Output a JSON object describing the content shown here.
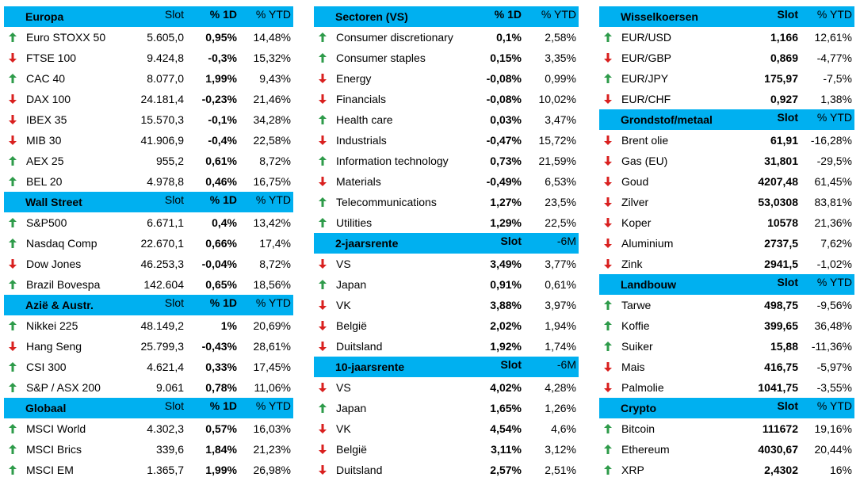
{
  "columns": [
    {
      "sections": [
        {
          "title": "Europa",
          "headers": [
            "Slot",
            "% 1D",
            "% YTD"
          ],
          "rows": [
            {
              "trend": "up",
              "name": "Euro STOXX 50",
              "cells": [
                "5.605,0",
                "0,95%",
                "14,48%"
              ]
            },
            {
              "trend": "down",
              "name": "FTSE 100",
              "cells": [
                "9.424,8",
                "-0,3%",
                "15,32%"
              ]
            },
            {
              "trend": "up",
              "name": "CAC 40",
              "cells": [
                "8.077,0",
                "1,99%",
                "9,43%"
              ]
            },
            {
              "trend": "down",
              "name": "DAX 100",
              "cells": [
                "24.181,4",
                "-0,23%",
                "21,46%"
              ]
            },
            {
              "trend": "down",
              "name": "IBEX 35",
              "cells": [
                "15.570,3",
                "-0,1%",
                "34,28%"
              ]
            },
            {
              "trend": "down",
              "name": "MIB 30",
              "cells": [
                "41.906,9",
                "-0,4%",
                "22,58%"
              ]
            },
            {
              "trend": "up",
              "name": "AEX 25",
              "cells": [
                "955,2",
                "0,61%",
                "8,72%"
              ]
            },
            {
              "trend": "up",
              "name": "BEL 20",
              "cells": [
                "4.978,8",
                "0,46%",
                "16,75%"
              ]
            }
          ]
        },
        {
          "title": "Wall Street",
          "headers": [
            "Slot",
            "% 1D",
            "% YTD"
          ],
          "rows": [
            {
              "trend": "up",
              "name": "S&P500",
              "cells": [
                "6.671,1",
                "0,4%",
                "13,42%"
              ]
            },
            {
              "trend": "up",
              "name": "Nasdaq Comp",
              "cells": [
                "22.670,1",
                "0,66%",
                "17,4%"
              ]
            },
            {
              "trend": "down",
              "name": "Dow Jones",
              "cells": [
                "46.253,3",
                "-0,04%",
                "8,72%"
              ]
            },
            {
              "trend": "up",
              "name": "Brazil Bovespa",
              "cells": [
                "142.604",
                "0,65%",
                "18,56%"
              ]
            }
          ]
        },
        {
          "title": "Azië & Austr.",
          "headers": [
            "Slot",
            "% 1D",
            "% YTD"
          ],
          "rows": [
            {
              "trend": "up",
              "name": "Nikkei 225",
              "cells": [
                "48.149,2",
                "1%",
                "20,69%"
              ]
            },
            {
              "trend": "down",
              "name": "Hang Seng",
              "cells": [
                "25.799,3",
                "-0,43%",
                "28,61%"
              ]
            },
            {
              "trend": "up",
              "name": "CSI 300",
              "cells": [
                "4.621,4",
                "0,33%",
                "17,45%"
              ]
            },
            {
              "trend": "up",
              "name": "S&P / ASX 200",
              "cells": [
                "9.061",
                "0,78%",
                "11,06%"
              ]
            }
          ]
        },
        {
          "title": "Globaal",
          "headers": [
            "Slot",
            "% 1D",
            "% YTD"
          ],
          "rows": [
            {
              "trend": "up",
              "name": "MSCI World",
              "cells": [
                "4.302,3",
                "0,57%",
                "16,03%"
              ]
            },
            {
              "trend": "up",
              "name": "MSCI Brics",
              "cells": [
                "339,6",
                "1,84%",
                "21,23%"
              ]
            },
            {
              "trend": "up",
              "name": "MSCI EM",
              "cells": [
                "1.365,7",
                "1,99%",
                "26,98%"
              ]
            }
          ]
        }
      ]
    },
    {
      "sections": [
        {
          "title": "Sectoren (VS)",
          "headers": [
            "% 1D",
            "% YTD"
          ],
          "rows": [
            {
              "trend": "up",
              "name": "Consumer discretionary",
              "cells": [
                "0,1%",
                "2,58%"
              ]
            },
            {
              "trend": "up",
              "name": "Consumer staples",
              "cells": [
                "0,15%",
                "3,35%"
              ]
            },
            {
              "trend": "down",
              "name": "Energy",
              "cells": [
                "-0,08%",
                "0,99%"
              ]
            },
            {
              "trend": "down",
              "name": "Financials",
              "cells": [
                "-0,08%",
                "10,02%"
              ]
            },
            {
              "trend": "up",
              "name": "Health care",
              "cells": [
                "0,03%",
                "3,47%"
              ]
            },
            {
              "trend": "down",
              "name": "Industrials",
              "cells": [
                "-0,47%",
                "15,72%"
              ]
            },
            {
              "trend": "up",
              "name": "Information technology",
              "cells": [
                "0,73%",
                "21,59%"
              ]
            },
            {
              "trend": "down",
              "name": "Materials",
              "cells": [
                "-0,49%",
                "6,53%"
              ]
            },
            {
              "trend": "up",
              "name": "Telecommunications",
              "cells": [
                "1,27%",
                "23,5%"
              ]
            },
            {
              "trend": "up",
              "name": "Utilities",
              "cells": [
                "1,29%",
                "22,5%"
              ]
            }
          ]
        },
        {
          "title": "2-jaarsrente",
          "headers": [
            "Slot",
            "-6M"
          ],
          "rows": [
            {
              "trend": "down",
              "name": "VS",
              "cells": [
                "3,49%",
                "3,77%"
              ]
            },
            {
              "trend": "up",
              "name": "Japan",
              "cells": [
                "0,91%",
                "0,61%"
              ]
            },
            {
              "trend": "down",
              "name": "VK",
              "cells": [
                "3,88%",
                "3,97%"
              ]
            },
            {
              "trend": "down",
              "name": "België",
              "cells": [
                "2,02%",
                "1,94%"
              ]
            },
            {
              "trend": "down",
              "name": "Duitsland",
              "cells": [
                "1,92%",
                "1,74%"
              ]
            }
          ]
        },
        {
          "title": "10-jaarsrente",
          "headers": [
            "Slot",
            "-6M"
          ],
          "rows": [
            {
              "trend": "down",
              "name": "VS",
              "cells": [
                "4,02%",
                "4,28%"
              ]
            },
            {
              "trend": "up",
              "name": "Japan",
              "cells": [
                "1,65%",
                "1,26%"
              ]
            },
            {
              "trend": "down",
              "name": "VK",
              "cells": [
                "4,54%",
                "4,6%"
              ]
            },
            {
              "trend": "down",
              "name": "België",
              "cells": [
                "3,11%",
                "3,12%"
              ]
            },
            {
              "trend": "down",
              "name": "Duitsland",
              "cells": [
                "2,57%",
                "2,51%"
              ]
            }
          ]
        }
      ]
    },
    {
      "sections": [
        {
          "title": "Wisselkoersen",
          "headers": [
            "Slot",
            "% YTD"
          ],
          "rows": [
            {
              "trend": "up",
              "name": "EUR/USD",
              "cells": [
                "1,166",
                "12,61%"
              ]
            },
            {
              "trend": "down",
              "name": "EUR/GBP",
              "cells": [
                "0,869",
                "-4,77%"
              ]
            },
            {
              "trend": "up",
              "name": "EUR/JPY",
              "cells": [
                "175,97",
                "-7,5%"
              ]
            },
            {
              "trend": "down",
              "name": "EUR/CHF",
              "cells": [
                "0,927",
                "1,38%"
              ]
            }
          ]
        },
        {
          "title": "Grondstof/metaal",
          "headers": [
            "Slot",
            "% YTD"
          ],
          "rows": [
            {
              "trend": "down",
              "name": "Brent olie",
              "cells": [
                "61,91",
                "-16,28%"
              ]
            },
            {
              "trend": "down",
              "name": "Gas (EU)",
              "cells": [
                "31,801",
                "-29,5%"
              ]
            },
            {
              "trend": "down",
              "name": "Goud",
              "cells": [
                "4207,48",
                "61,45%"
              ]
            },
            {
              "trend": "down",
              "name": "Zilver",
              "cells": [
                "53,0308",
                "83,81%"
              ]
            },
            {
              "trend": "down",
              "name": "Koper",
              "cells": [
                "10578",
                "21,36%"
              ]
            },
            {
              "trend": "down",
              "name": "Aluminium",
              "cells": [
                "2737,5",
                "7,62%"
              ]
            },
            {
              "trend": "down",
              "name": "Zink",
              "cells": [
                "2941,5",
                "-1,02%"
              ]
            }
          ]
        },
        {
          "title": "Landbouw",
          "headers": [
            "Slot",
            "% YTD"
          ],
          "rows": [
            {
              "trend": "up",
              "name": "Tarwe",
              "cells": [
                "498,75",
                "-9,56%"
              ]
            },
            {
              "trend": "up",
              "name": "Koffie",
              "cells": [
                "399,65",
                "36,48%"
              ]
            },
            {
              "trend": "up",
              "name": "Suiker",
              "cells": [
                "15,88",
                "-11,36%"
              ]
            },
            {
              "trend": "down",
              "name": "Mais",
              "cells": [
                "416,75",
                "-5,97%"
              ]
            },
            {
              "trend": "down",
              "name": "Palmolie",
              "cells": [
                "1041,75",
                "-3,55%"
              ]
            }
          ]
        },
        {
          "title": "Crypto",
          "headers": [
            "Slot",
            "% YTD"
          ],
          "rows": [
            {
              "trend": "up",
              "name": "Bitcoin",
              "cells": [
                "111672",
                "19,16%"
              ]
            },
            {
              "trend": "up",
              "name": "Ethereum",
              "cells": [
                "4030,67",
                "20,44%"
              ]
            },
            {
              "trend": "up",
              "name": "XRP",
              "cells": [
                "2,4302",
                "16%"
              ]
            }
          ]
        }
      ]
    }
  ]
}
